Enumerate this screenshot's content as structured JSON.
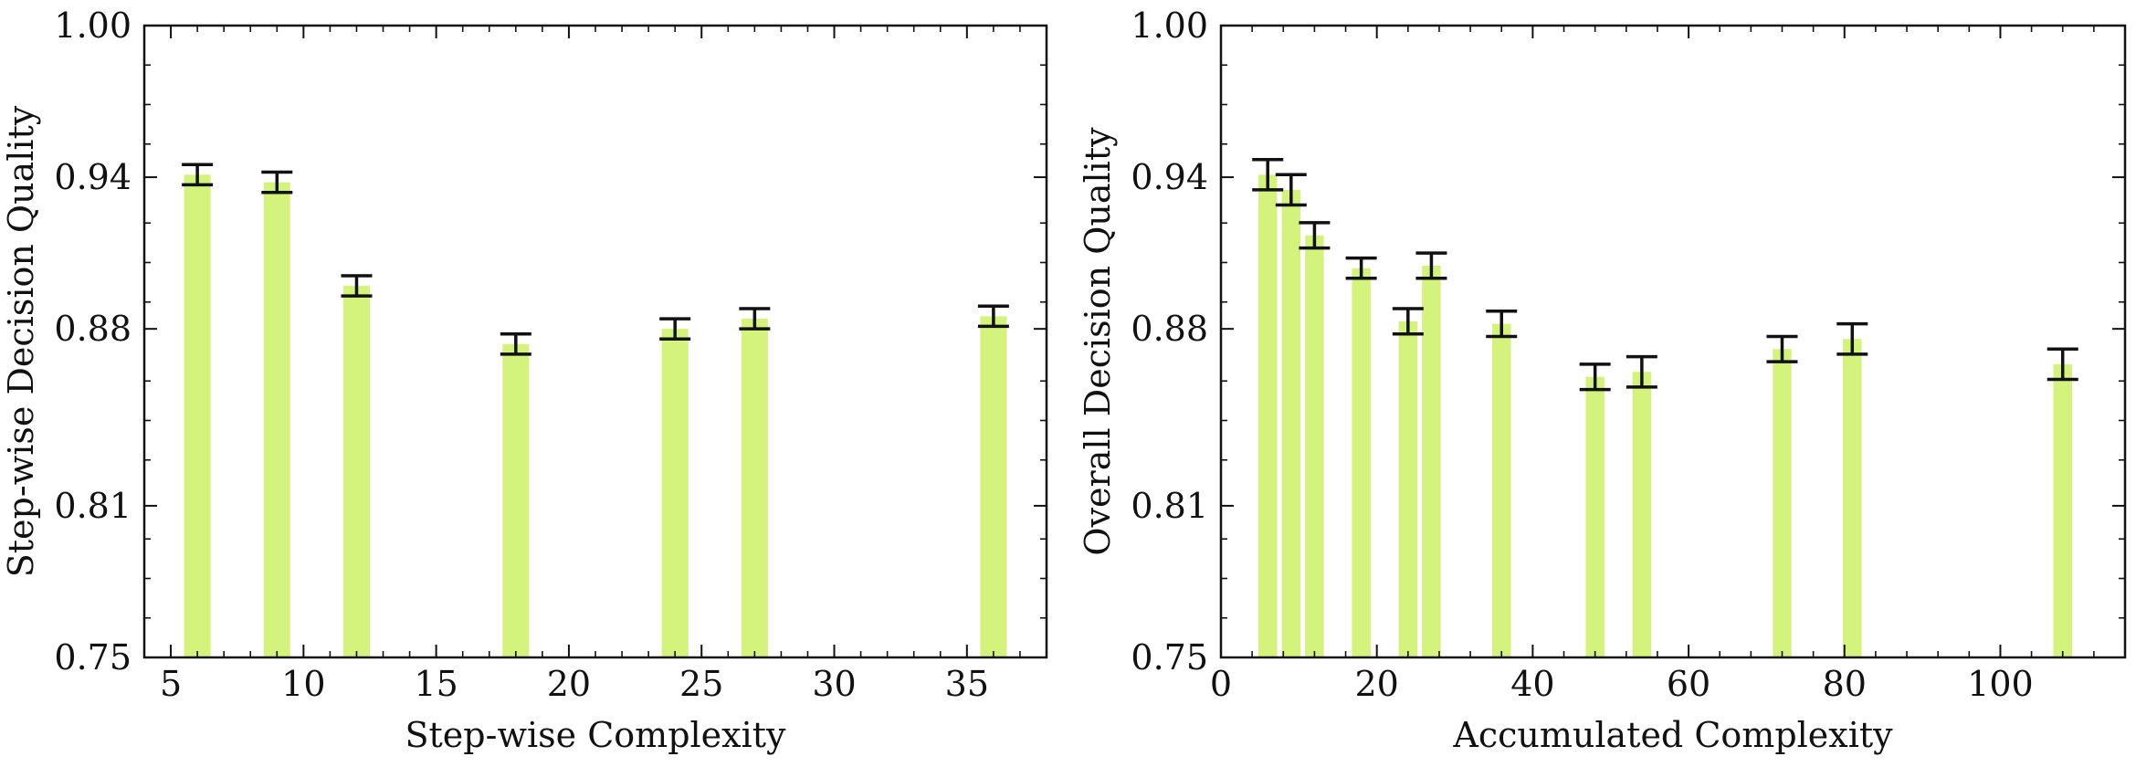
{
  "colors": {
    "bar": "#d4f37c",
    "error": "#111111",
    "axis": "#111111"
  },
  "chart_data": [
    {
      "type": "bar",
      "xlabel": "Step-wise Complexity",
      "ylabel": "Step-wise Decision Quality",
      "xlim": [
        4,
        38
      ],
      "ylim": [
        0.75,
        1.0
      ],
      "xticks": [
        "5",
        "10",
        "15",
        "20",
        "25",
        "30",
        "35"
      ],
      "yticks": [
        "0.75",
        "0.81",
        "0.88",
        "0.94",
        "1.00"
      ],
      "bar_width": 1.0,
      "x": [
        6,
        9,
        12,
        18,
        24,
        27,
        36
      ],
      "values": [
        0.941,
        0.938,
        0.897,
        0.874,
        0.88,
        0.884,
        0.885
      ],
      "err": [
        0.004,
        0.004,
        0.004,
        0.004,
        0.004,
        0.004,
        0.004
      ]
    },
    {
      "type": "bar",
      "xlabel": "Accumulated Complexity",
      "ylabel": "Overall Decision Quality",
      "xlim": [
        0,
        116
      ],
      "ylim": [
        0.75,
        1.0
      ],
      "xticks": [
        "0",
        "20",
        "40",
        "60",
        "80",
        "100"
      ],
      "yticks": [
        "0.75",
        "0.81",
        "0.88",
        "0.94",
        "1.00"
      ],
      "bar_width": 2.4,
      "x": [
        6,
        9,
        12,
        18,
        24,
        27,
        36,
        48,
        54,
        72,
        81,
        108
      ],
      "values": [
        0.941,
        0.935,
        0.917,
        0.904,
        0.883,
        0.905,
        0.882,
        0.861,
        0.863,
        0.872,
        0.876,
        0.866
      ],
      "err": [
        0.006,
        0.006,
        0.005,
        0.004,
        0.005,
        0.005,
        0.005,
        0.005,
        0.006,
        0.005,
        0.006,
        0.006
      ]
    }
  ]
}
